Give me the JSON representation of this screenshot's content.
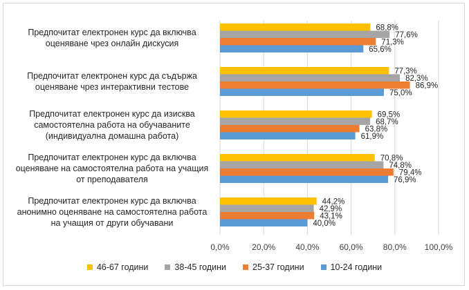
{
  "chart_data": {
    "type": "bar",
    "orientation": "horizontal",
    "categories": [
      [
        "Предпочитат електронен курс да включва",
        "оценяване чрез онлайн дискусия"
      ],
      [
        "Предпочитат електронен курс да съдържа",
        "оценяване чрез интерактивни тестове"
      ],
      [
        "Предпочитат електронен курс да изисква",
        "самостоятелна работа на обучаваните",
        "(индивидуална домашна работа)"
      ],
      [
        "Предпочитат електронен курс да включва",
        "оценяване на самостоятелна работа на учащия",
        "от преподавателя"
      ],
      [
        "Предпочитат електронен курс да включва",
        "анонимно оценяване на самостоятелна работа",
        "на учащия от други обучавани"
      ]
    ],
    "series": [
      {
        "name": "46-67 години",
        "color": "#ffc000",
        "values": [
          68.8,
          77.3,
          69.5,
          70.8,
          44.2
        ],
        "labels": [
          "68,8%",
          "77,3%",
          "69,5%",
          "70,8%",
          "44,2%"
        ]
      },
      {
        "name": "38-45 години",
        "color": "#a5a5a5",
        "values": [
          77.6,
          82.3,
          68.7,
          74.8,
          42.9
        ],
        "labels": [
          "77,6%",
          "82,3%",
          "68,7%",
          "74,8%",
          "42,9%"
        ]
      },
      {
        "name": "25-37 години",
        "color": "#ed7d31",
        "values": [
          71.3,
          86.9,
          63.8,
          79.4,
          43.1
        ],
        "labels": [
          "71,3%",
          "86,9%",
          "63,8%",
          "79,4%",
          "43,1%"
        ]
      },
      {
        "name": "10-24 години",
        "color": "#5b9bd5",
        "values": [
          65.6,
          75.0,
          61.9,
          76.9,
          40.0
        ],
        "labels": [
          "65,6%",
          "75,0%",
          "61,9%",
          "76,9%",
          "40,0%"
        ]
      }
    ],
    "xlim": [
      0,
      100
    ],
    "xticks": [
      0,
      20,
      40,
      60,
      80,
      100
    ],
    "xtick_labels": [
      "0,0%",
      "20,0%",
      "40,0%",
      "60,0%",
      "80,0%",
      "100,0%"
    ],
    "gridlines": true,
    "legend_position": "bottom"
  }
}
